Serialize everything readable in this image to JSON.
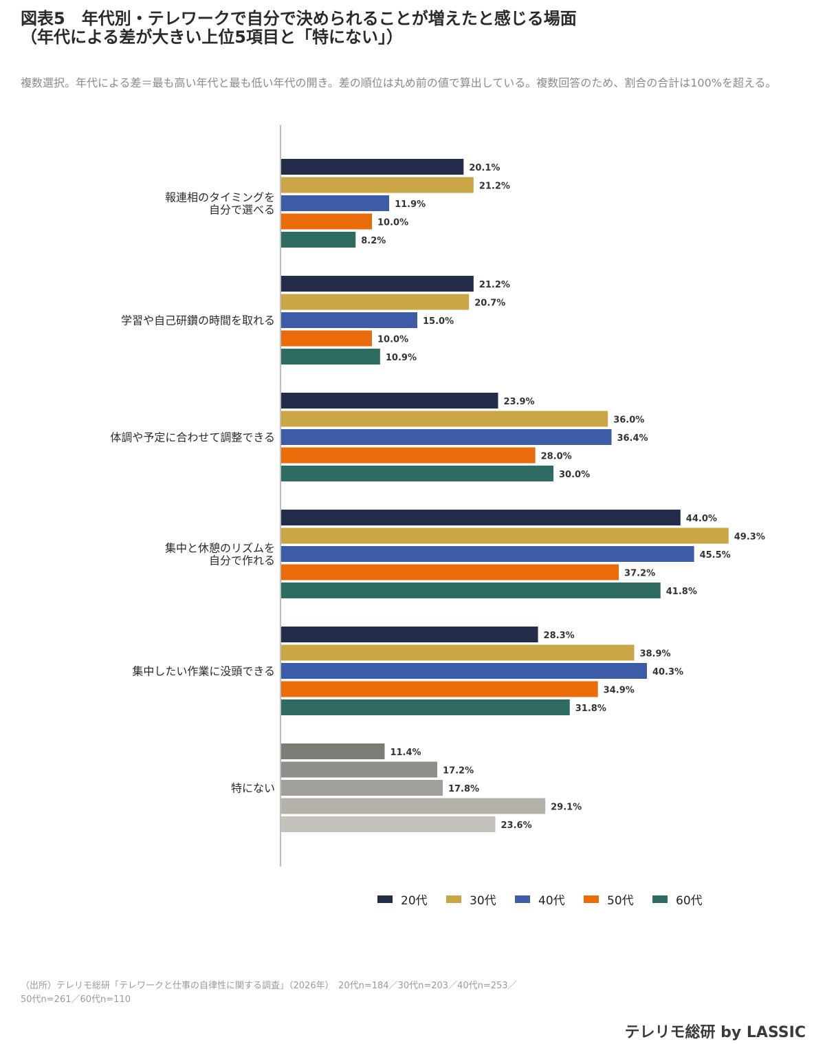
{
  "title_line1": "図表5　年代別・テレワークで自分で決められることが増えたと感じる場面",
  "title_line2": "（年代による差が大きい上位5項目と「特にない」）",
  "subtitle": "複数選択。年代による差＝最も高い年代と最も低い年代の開き。差の順位は丸め前の値で算出している。複数回答のため、割合の合計は100%を超える。",
  "source_line1": "（出所）テレリモ総研「テレワークと仕事の自律性に関する調査」（2026年）　20代n=184／30代n=203／40代n=253／",
  "source_line2": "50代n=261／60代n=110",
  "brand": "テレリモ総研 by LASSIC",
  "chart_data": {
    "type": "bar",
    "orientation": "horizontal",
    "value_suffix": "%",
    "xlim": [
      0,
      55
    ],
    "categories": [
      [
        "報連相のタイミングを",
        "自分で選べる"
      ],
      [
        "学習や自己研鑽の時間を取れる"
      ],
      [
        "体調や予定に合わせて調整できる"
      ],
      [
        "集中と休憩のリズムを",
        "自分で作れる"
      ],
      [
        "集中したい作業に没頭できる"
      ],
      [
        "特にない"
      ]
    ],
    "series": [
      {
        "name": "20代",
        "color": "#232c48",
        "values": [
          20.1,
          21.2,
          23.9,
          44.0,
          28.3,
          11.4
        ]
      },
      {
        "name": "30代",
        "color": "#cba646",
        "values": [
          21.2,
          20.7,
          36.0,
          49.3,
          38.9,
          17.2
        ]
      },
      {
        "name": "40代",
        "color": "#3d5ca8",
        "values": [
          11.9,
          15.0,
          36.4,
          45.5,
          40.3,
          17.8
        ]
      },
      {
        "name": "50代",
        "color": "#ea6b0a",
        "values": [
          10.0,
          10.0,
          28.0,
          37.2,
          34.9,
          29.1
        ]
      },
      {
        "name": "60代",
        "color": "#2e6c62",
        "values": [
          8.2,
          10.9,
          30.0,
          41.8,
          31.8,
          23.6
        ]
      }
    ],
    "muted_category_index": 5,
    "muted_colors": [
      "#7d7b76",
      "#8f8e88",
      "#a19f99",
      "#b3b1aa",
      "#c4c2bb"
    ],
    "legend_position": "bottom",
    "grid": false
  }
}
